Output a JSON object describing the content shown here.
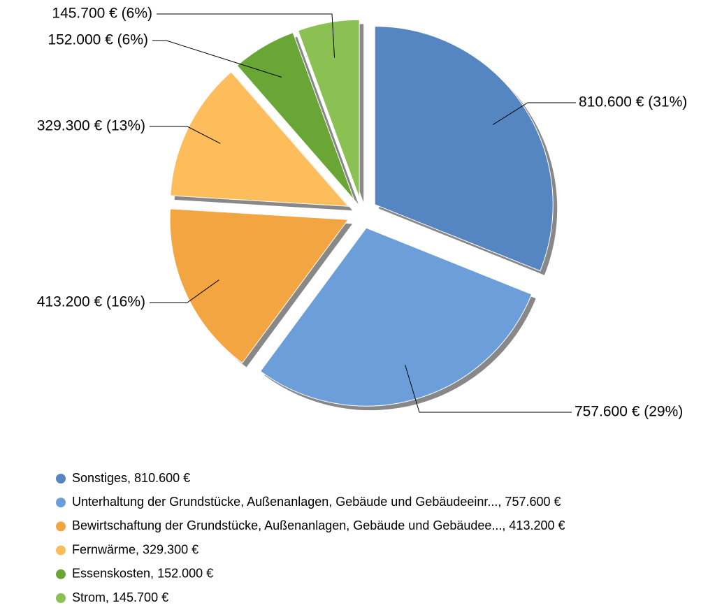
{
  "chart_data": {
    "type": "pie",
    "categories": [
      "Sonstiges, 810.600 €",
      "Unterhaltung der Grundstücke, Außenanlagen, Gebäude und Gebäudeeinr..., 757.600 €",
      "Bewirtschaftung der Grundstücke, Außenanlagen, Gebäude und Gebäudee..., 413.200 €",
      "Fernwärme, 329.300 €",
      "Essenskosten, 152.000 €",
      "Strom, 145.700 €"
    ],
    "values": [
      810600,
      757600,
      413200,
      329300,
      152000,
      145700
    ],
    "value_labels": [
      "810.600 € (31%)",
      "757.600 € (29%)",
      "413.200 € (16%)",
      "329.300 € (13%)",
      "152.000 € (6%)",
      "145.700 € (6%)"
    ],
    "colors": [
      "#5586c1",
      "#6c9fd9",
      "#f3a541",
      "#fdbd5b",
      "#6aa636",
      "#8bc153"
    ],
    "legend": "bottom-left"
  }
}
